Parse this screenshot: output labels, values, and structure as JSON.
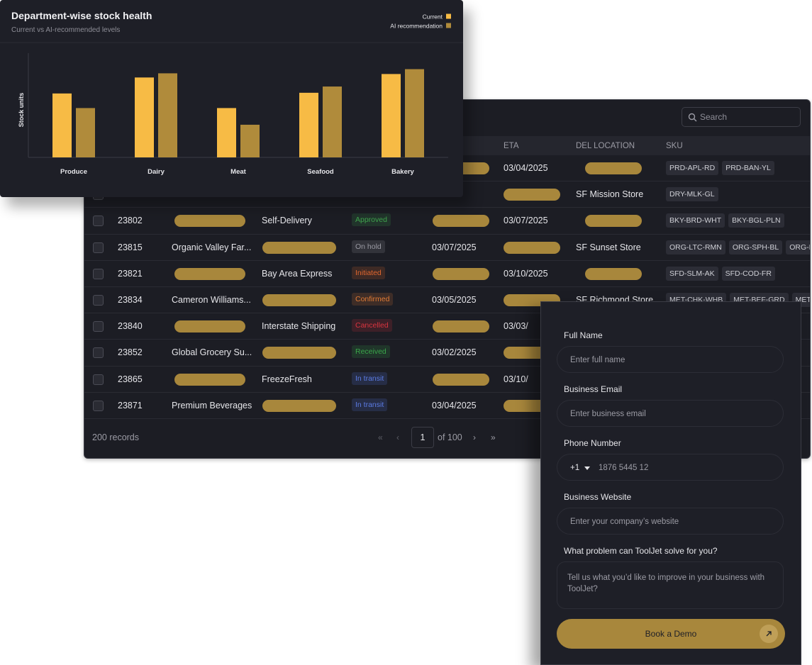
{
  "chart_data": {
    "type": "bar",
    "title": "Department-wise stock health",
    "subtitle": "Current vs AI-recommended levels",
    "y_label": "Stock units",
    "categories": [
      "Produce",
      "Dairy",
      "Meat",
      "Seafood",
      "Bakery"
    ],
    "series": [
      {
        "name": "Current",
        "color": "#f7bb45",
        "values": [
          92,
          115,
          71,
          93,
          120
        ]
      },
      {
        "name": "AI recommendation",
        "color": "#b08b3b",
        "values": [
          71,
          121,
          47,
          102,
          127
        ]
      }
    ],
    "ylim": [
      0,
      150
    ],
    "legend": "top-right"
  },
  "table": {
    "search_placeholder": "Search",
    "columns": [
      "ETA",
      "DEL LOCATION",
      "SKU"
    ],
    "rows": [
      {
        "del_date": null,
        "eta": "03/04/2025",
        "location": null,
        "skus": [
          "PRD-APL-RD",
          "PRD-BAN-YL"
        ]
      },
      {
        "eta": null,
        "location": "SF Mission Store",
        "skus": [
          "DRY-MLK-GL"
        ]
      },
      {
        "id": "23802",
        "name": null,
        "carrier": "Self-Delivery",
        "status": "Approved",
        "status_color": "#3fa34d",
        "del_date": null,
        "eta": "03/07/2025",
        "location": null,
        "skus": [
          "BKY-BRD-WHT",
          "BKY-BGL-PLN"
        ]
      },
      {
        "id": "23815",
        "name": "Organic Valley Far...",
        "carrier": null,
        "status": "On hold",
        "status_color": "#9a9aa3",
        "del_date": "03/07/2025",
        "eta": null,
        "location": "SF Sunset Store",
        "skus": [
          "ORG-LTC-RMN",
          "ORG-SPH-BL",
          "ORG-KLE"
        ]
      },
      {
        "id": "23821",
        "name": null,
        "carrier": "Bay Area Express",
        "status": "Initiated",
        "status_color": "#e0672f",
        "del_date": null,
        "eta": "03/10/2025",
        "location": null,
        "skus": [
          "SFD-SLM-AK",
          "SFD-COD-FR"
        ]
      },
      {
        "id": "23834",
        "name": "Cameron Williams...",
        "carrier": null,
        "status": "Confirmed",
        "status_color": "#e07a35",
        "del_date": "03/05/2025",
        "eta": null,
        "location": "SF Richmond Store",
        "skus": [
          "MET-CHK-WHB",
          "MET-BEF-GRD",
          "MET-P"
        ]
      },
      {
        "id": "23840",
        "name": null,
        "carrier": "Interstate Shipping",
        "status": "Cancelled",
        "status_color": "#d9343f",
        "del_date": null,
        "eta": "03/03/"
      },
      {
        "id": "23852",
        "name": "Global Grocery Su...",
        "carrier": null,
        "status": "Received",
        "status_color": "#3aa64a",
        "del_date": "03/02/2025",
        "eta": null
      },
      {
        "id": "23865",
        "name": null,
        "carrier": "FreezeFresh",
        "status": "In transit",
        "status_color": "#5b7be3",
        "del_date": null,
        "eta": "03/10/"
      },
      {
        "id": "23871",
        "name": "Premium Beverages",
        "carrier": null,
        "status": "In transit",
        "status_color": "#5b7be3",
        "del_date": "03/04/2025",
        "eta": null
      }
    ],
    "records": "200 records",
    "page": "1",
    "page_total": "of 100"
  },
  "form": {
    "fields": [
      {
        "label": "Full Name",
        "placeholder": "Enter full name"
      },
      {
        "label": "Business Email",
        "placeholder": "Enter business email"
      },
      {
        "label": "Phone Number",
        "prefix": "+1",
        "placeholder": "1876 5445 12"
      },
      {
        "label": "Business Website",
        "placeholder": "Enter your company’s website"
      },
      {
        "label": "What problem can ToolJet solve for you?",
        "placeholder": "Tell us what you’d like to improve in your business with ToolJet?",
        "multiline": true
      }
    ],
    "button": "Book a Demo"
  }
}
